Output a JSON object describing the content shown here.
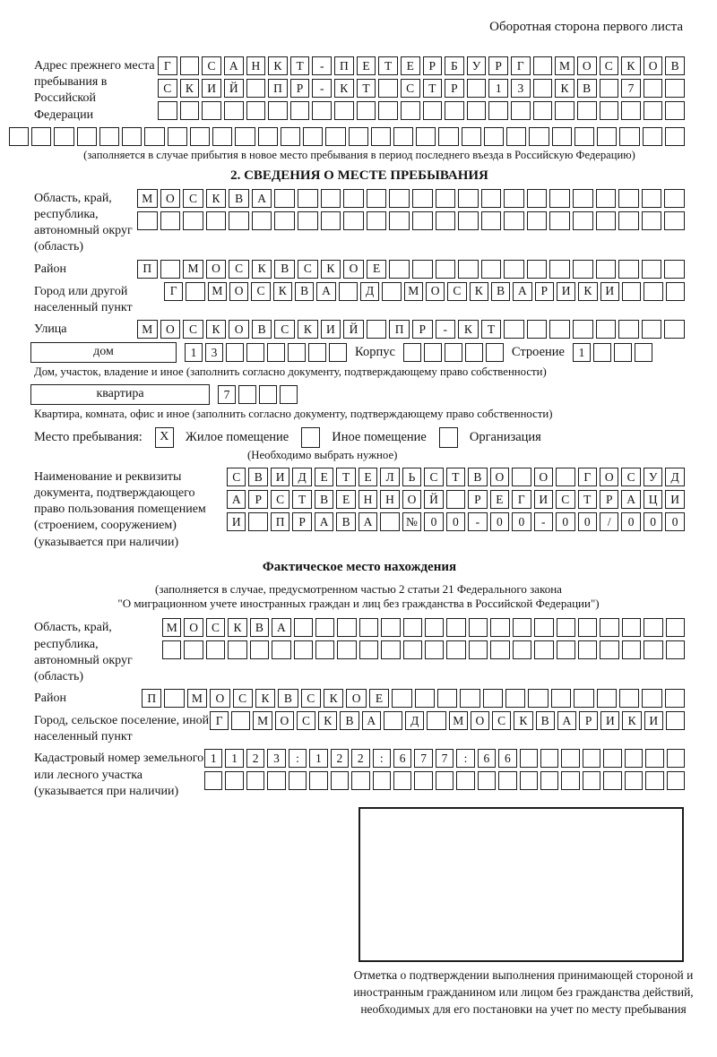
{
  "page": {
    "header_note": "Оборотная сторона первого листа"
  },
  "prev_address": {
    "label": "Адрес прежнего места пребывания в Российской Федерации",
    "row1": {
      "text": "Г САНКТ-ПЕТЕРБУРГ МОСКОВ",
      "cells": 24
    },
    "row2": {
      "text": "СКИЙ ПР-КТ СТР 13 КВ 7",
      "cells": 24
    },
    "row3": {
      "text": "",
      "cells": 24
    },
    "row4": {
      "text": "",
      "cells": 30
    },
    "note": "(заполняется в случае прибытия в новое место пребывания в период последнего въезда в Российскую Федерацию)"
  },
  "section2": {
    "title": "2. СВЕДЕНИЯ О МЕСТЕ ПРЕБЫВАНИЯ",
    "region": {
      "label": "Область, край, республика, автономный округ (область)",
      "row1": {
        "text": "МОСКВА",
        "cells": 24
      },
      "row2": {
        "text": "",
        "cells": 24
      }
    },
    "district": {
      "label": "Район",
      "row1": {
        "text": "П МОСКВСКОЕ",
        "cells": 24
      }
    },
    "city": {
      "label": "Город или другой населенный пункт",
      "row1": {
        "text": "Г МОСКВА Д МОСКВАРИКИ",
        "cells": 24
      }
    },
    "street": {
      "label": "Улица",
      "row1": {
        "text": "МОСКОВСКИЙ ПР-КТ",
        "cells": 24
      }
    },
    "house": {
      "box_label": "дом",
      "house_cells": {
        "text": "13",
        "cells": 8
      },
      "korpus_label": "Корпус",
      "korpus_cells": {
        "text": "",
        "cells": 5
      },
      "stroenie_label": "Строение",
      "stroenie_cells": {
        "text": "1",
        "cells": 4
      }
    },
    "house_note": "Дом, участок, владение и иное (заполнить согласно документу, подтверждающему право собственности)",
    "apartment": {
      "box_label": "квартира",
      "cells": {
        "text": "7",
        "cells": 4
      }
    },
    "apartment_note": "Квартира, комната, офис и иное (заполнить согласно документу, подтверждающему право собственности)",
    "stay_type": {
      "label": "Место пребывания:",
      "options": [
        {
          "label": "Жилое помещение",
          "mark": "X"
        },
        {
          "label": "Иное помещение",
          "mark": ""
        },
        {
          "label": "Организация",
          "mark": ""
        }
      ],
      "note": "(Необходимо выбрать нужное)"
    },
    "document": {
      "label": "Наименование и реквизиты документа, подтверждающего право пользования помещением (строением, сооружением) (указывается при наличии)",
      "row1": {
        "text": "СВИДЕТЕЛЬСТВО О ГОСУД",
        "cells": 21
      },
      "row2": {
        "text": "АРСТВЕННОЙ РЕГИСТРАЦИ",
        "cells": 21
      },
      "row3": {
        "text": "И ПРАВА №00-00-00/000",
        "cells": 21
      }
    }
  },
  "actual_location": {
    "title": "Фактическое место нахождения",
    "note_line1": "(заполняется в случае, предусмотренном частью 2 статьи 21 Федерального закона",
    "note_line2": "\"О миграционном учете иностранных граждан и лиц без гражданства в Российской Федерации\")",
    "region": {
      "label": "Область, край, республика, автономный округ (область)",
      "row1": {
        "text": "МОСКВА",
        "cells": 24
      },
      "row2": {
        "text": "",
        "cells": 24
      }
    },
    "district": {
      "label": "Район",
      "row1": {
        "text": "П МОСКВСКОЕ",
        "cells": 24
      }
    },
    "city": {
      "label": "Город, сельское поселение, иной населенный пункт",
      "row1": {
        "text": "Г МОСКВА Д МОСКВАРИКИ",
        "cells": 22
      }
    },
    "cadastre": {
      "label": "Кадастровый номер земельного или лесного участка (указывается при наличии)",
      "row1": {
        "text": "1123:122:677:66",
        "cells": 23
      },
      "row2": {
        "text": "",
        "cells": 23
      }
    },
    "stamp_caption": "Отметка о подтверждении выполнения принимающей стороной и иностранным гражданином или лицом без гражданства действий, необходимых для его постановки на учет по месту пребывания"
  }
}
